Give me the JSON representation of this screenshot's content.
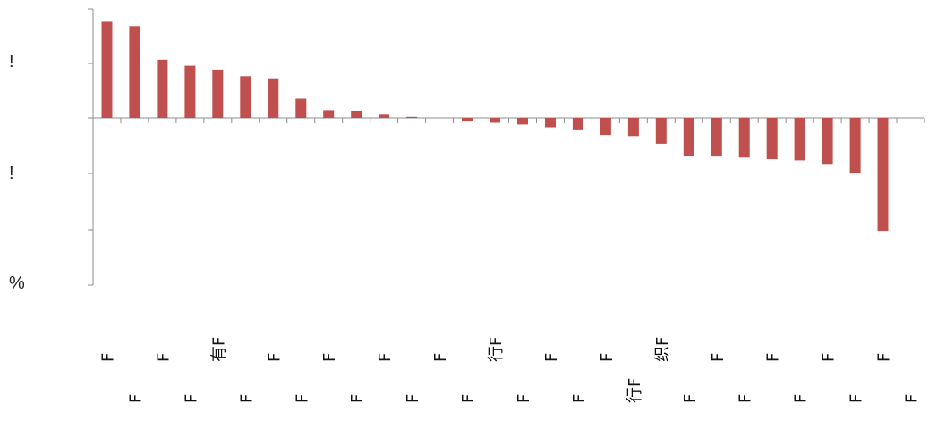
{
  "chart_data": {
    "type": "bar",
    "title": "",
    "xlabel": "",
    "ylabel": "",
    "ylim": [
      -3,
      2
    ],
    "grid": false,
    "legend": "none",
    "bar_color": "#c0504d",
    "axis_color": "#8c8c8c",
    "y_tick_labels": [
      "!",
      "!",
      "%"
    ],
    "categories": [
      "F",
      "F",
      "F",
      "F",
      "有F",
      "F",
      "F",
      "F",
      "F",
      "F",
      "F",
      "F",
      "F",
      "F",
      "行F",
      "F",
      "F",
      "F",
      "F",
      "行F",
      "织F",
      "F",
      "F",
      "F",
      "F",
      "F",
      "F",
      "F",
      "F",
      "F"
    ],
    "values": [
      1.75,
      1.67,
      1.06,
      0.95,
      0.88,
      0.76,
      0.72,
      0.35,
      0.14,
      0.13,
      0.06,
      0.02,
      0.0,
      -0.05,
      -0.09,
      -0.12,
      -0.17,
      -0.21,
      -0.31,
      -0.33,
      -0.47,
      -0.69,
      -0.7,
      -0.72,
      -0.75,
      -0.77,
      -0.85,
      -1.01,
      -2.05,
      0.0
    ]
  }
}
